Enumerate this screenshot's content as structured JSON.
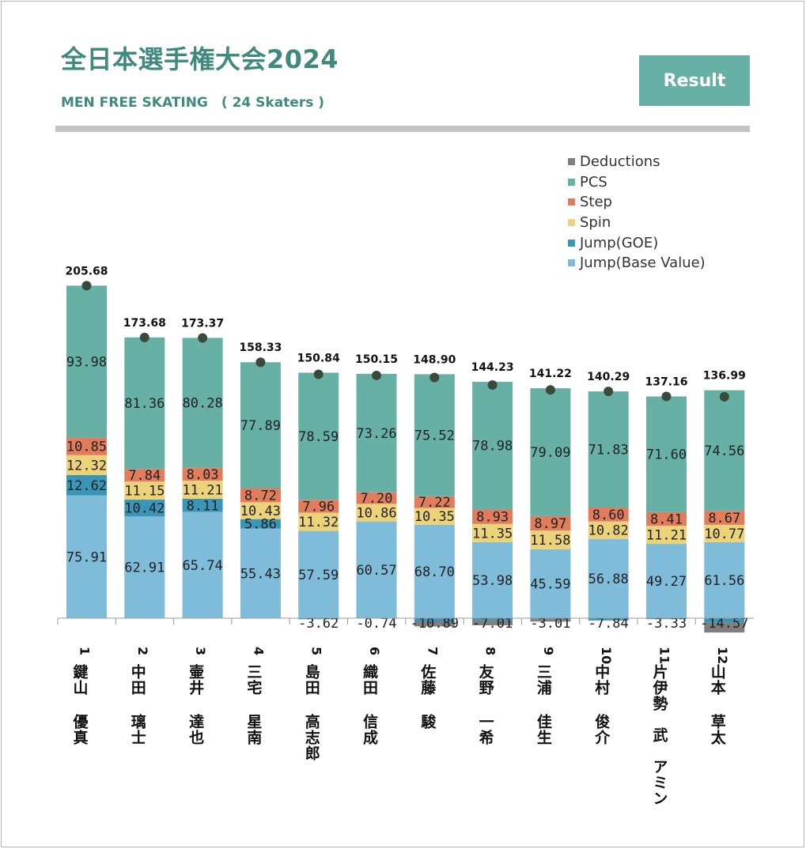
{
  "header": {
    "title": "全日本選手権大会2024",
    "subtitle": "MEN FREE SKATING　( 24 Skaters )",
    "result_button": "Result"
  },
  "colors": {
    "deductions": "#7f7f7f",
    "pcs": "#67b0a6",
    "step": "#e17c5d",
    "spin": "#ecd379",
    "goe": "#3a96b8",
    "base": "#7fbcd9",
    "total_marker": "#3a4a3a",
    "title": "#3f8a7d"
  },
  "legend": [
    {
      "key": "deductions",
      "label": "Deductions"
    },
    {
      "key": "pcs",
      "label": "PCS"
    },
    {
      "key": "step",
      "label": "Step"
    },
    {
      "key": "spin",
      "label": "Spin"
    },
    {
      "key": "goe",
      "label": "Jump(GOE)"
    },
    {
      "key": "base",
      "label": "Jump(Base Value)"
    }
  ],
  "chart_data": {
    "type": "bar",
    "stacked": true,
    "ylim": [
      -18,
      230
    ],
    "segment_order": [
      "base",
      "goe",
      "spin",
      "step",
      "pcs"
    ],
    "skaters": [
      {
        "rank": "1",
        "name": "鍵山 優真",
        "total": "205.68",
        "total_value": 205.68,
        "base": 75.91,
        "goe": 12.62,
        "spin": 12.32,
        "step": 10.85,
        "pcs": 93.98,
        "goe_label": "12.62",
        "deductions": 0
      },
      {
        "rank": "2",
        "name": "中田 璃士",
        "total": "173.68",
        "total_value": 173.68,
        "base": 62.91,
        "goe": 10.42,
        "spin": 11.15,
        "step": 7.84,
        "pcs": 81.36,
        "goe_label": "10.42",
        "deductions": 0
      },
      {
        "rank": "3",
        "name": "壷井 達也",
        "total": "173.37",
        "total_value": 173.37,
        "base": 65.74,
        "goe": 8.11,
        "spin": 11.21,
        "step": 8.03,
        "pcs": 80.28,
        "goe_label": "8.11",
        "deductions": 0
      },
      {
        "rank": "4",
        "name": "三宅 星南",
        "total": "158.33",
        "total_value": 158.33,
        "base": 55.43,
        "goe": 5.86,
        "spin": 10.43,
        "step": 8.72,
        "pcs": 77.89,
        "goe_label": "5.86",
        "deductions": 0
      },
      {
        "rank": "5",
        "name": "島田 高志郎",
        "total": "150.84",
        "total_value": 150.84,
        "base": 57.59,
        "goe": -3.62,
        "spin": 11.32,
        "step": 7.96,
        "pcs": 78.59,
        "goe_label": "-3.62",
        "deductions": 0
      },
      {
        "rank": "6",
        "name": "織田 信成",
        "total": "150.15",
        "total_value": 150.15,
        "base": 60.57,
        "goe": -0.74,
        "spin": 10.86,
        "step": 7.2,
        "pcs": 73.26,
        "goe_label": "-0.74",
        "deductions": 0
      },
      {
        "rank": "7",
        "name": "佐藤 駿",
        "total": "148.90",
        "total_value": 148.9,
        "base": 68.7,
        "goe": -10.89,
        "spin": 10.35,
        "step": 7.22,
        "pcs": 75.52,
        "goe_label": "-10.89",
        "deductions": -2
      },
      {
        "rank": "8",
        "name": "友野 一希",
        "total": "144.23",
        "total_value": 144.23,
        "base": 53.98,
        "goe": -7.01,
        "spin": 11.35,
        "step": 8.93,
        "pcs": 78.98,
        "goe_label": "-7.01",
        "deductions": -2
      },
      {
        "rank": "9",
        "name": "三浦 佳生",
        "total": "141.22",
        "total_value": 141.22,
        "base": 45.59,
        "goe": -3.01,
        "spin": 11.58,
        "step": 8.97,
        "pcs": 79.09,
        "goe_label": "-3.01",
        "deductions": -1
      },
      {
        "rank": "10",
        "name": "中村 俊介",
        "total": "140.29",
        "total_value": 140.29,
        "base": 56.88,
        "goe": -7.84,
        "spin": 10.82,
        "step": 8.6,
        "pcs": 71.83,
        "goe_label": "-7.84",
        "deductions": 0
      },
      {
        "rank": "11",
        "name": "片伊勢　武　アミン",
        "total": "137.16",
        "total_value": 137.16,
        "base": 49.27,
        "goe": -3.33,
        "spin": 11.21,
        "step": 8.41,
        "pcs": 71.6,
        "goe_label": "-3.33",
        "deductions": 0
      },
      {
        "rank": "12",
        "name": "山本 草太",
        "total": "136.99",
        "total_value": 136.99,
        "base": 61.56,
        "goe": -14.57,
        "spin": 10.77,
        "step": 8.67,
        "pcs": 74.56,
        "goe_label": "-14.57",
        "deductions": -4
      }
    ]
  }
}
